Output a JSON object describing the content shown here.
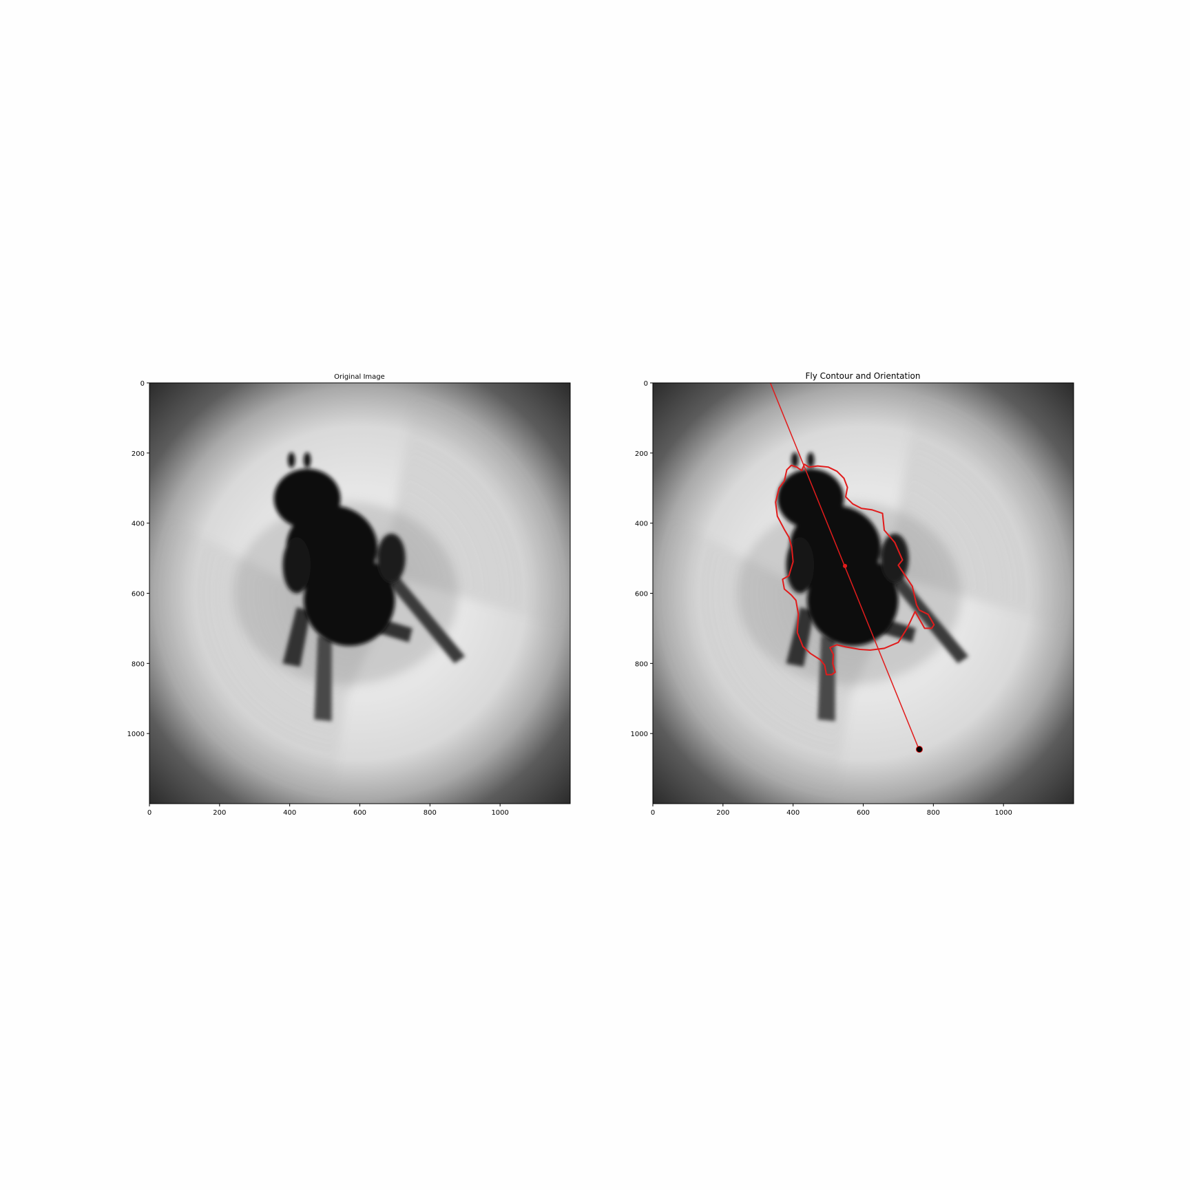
{
  "chart_data": [
    {
      "type": "image",
      "title": "Original Image",
      "xlim": [
        0,
        1200
      ],
      "ylim": [
        1200,
        0
      ],
      "xticks": [
        0,
        200,
        400,
        600,
        800,
        1000
      ],
      "yticks": [
        0,
        200,
        400,
        600,
        800,
        1000
      ],
      "xtick_labels": [
        "0",
        "200",
        "400",
        "600",
        "800",
        "1000"
      ],
      "ytick_labels": [
        "0",
        "200",
        "400",
        "600",
        "800",
        "1000"
      ],
      "grid": false
    },
    {
      "type": "image",
      "title": "Fly Contour and Orientation",
      "xlim": [
        0,
        1200
      ],
      "ylim": [
        1200,
        0
      ],
      "xticks": [
        0,
        200,
        400,
        600,
        800,
        1000
      ],
      "yticks": [
        0,
        200,
        400,
        600,
        800,
        1000
      ],
      "xtick_labels": [
        "0",
        "200",
        "400",
        "600",
        "800",
        "1000"
      ],
      "ytick_labels": [
        "0",
        "200",
        "400",
        "600",
        "800",
        "1000"
      ],
      "grid": false,
      "contour_color": "#e11c1c",
      "contour": [
        [
          445,
          240
        ],
        [
          470,
          237
        ],
        [
          500,
          240
        ],
        [
          525,
          252
        ],
        [
          545,
          272
        ],
        [
          555,
          298
        ],
        [
          550,
          325
        ],
        [
          570,
          345
        ],
        [
          595,
          358
        ],
        [
          625,
          362
        ],
        [
          655,
          372
        ],
        [
          660,
          420
        ],
        [
          690,
          455
        ],
        [
          712,
          505
        ],
        [
          700,
          520
        ],
        [
          740,
          580
        ],
        [
          752,
          633
        ],
        [
          760,
          648
        ],
        [
          785,
          660
        ],
        [
          802,
          690
        ],
        [
          795,
          700
        ],
        [
          775,
          700
        ],
        [
          748,
          652
        ],
        [
          725,
          700
        ],
        [
          700,
          740
        ],
        [
          660,
          757
        ],
        [
          620,
          762
        ],
        [
          590,
          760
        ],
        [
          550,
          753
        ],
        [
          525,
          747
        ],
        [
          505,
          755
        ],
        [
          515,
          775
        ],
        [
          513,
          800
        ],
        [
          520,
          825
        ],
        [
          510,
          832
        ],
        [
          495,
          832
        ],
        [
          490,
          805
        ],
        [
          478,
          790
        ],
        [
          450,
          772
        ],
        [
          428,
          752
        ],
        [
          412,
          712
        ],
        [
          415,
          660
        ],
        [
          408,
          620
        ],
        [
          395,
          605
        ],
        [
          375,
          588
        ],
        [
          370,
          560
        ],
        [
          388,
          550
        ],
        [
          400,
          510
        ],
        [
          396,
          468
        ],
        [
          388,
          440
        ],
        [
          375,
          418
        ],
        [
          355,
          380
        ],
        [
          350,
          340
        ],
        [
          360,
          300
        ],
        [
          375,
          280
        ],
        [
          382,
          248
        ],
        [
          395,
          235
        ],
        [
          410,
          240
        ],
        [
          425,
          250
        ],
        [
          432,
          232
        ]
      ],
      "orientation_line": [
        [
          335,
          0
        ],
        [
          757,
          1040
        ]
      ],
      "centroid": [
        548,
        522
      ],
      "head_point": [
        760,
        1045
      ],
      "line_color": "#e11c1c",
      "head_color": "#000000"
    }
  ]
}
